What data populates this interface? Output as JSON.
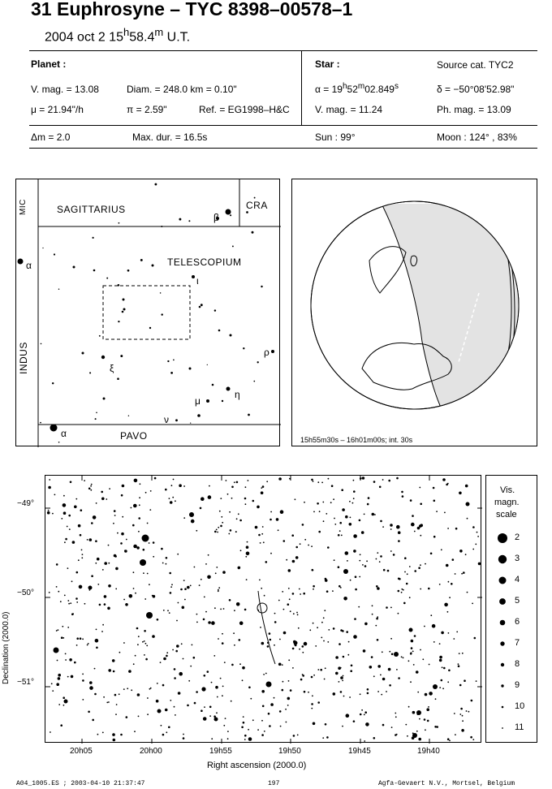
{
  "header": {
    "title": "31 Euphrosyne  –  TYC 8398–00578–1",
    "date_pre": "2004 oct  2  15",
    "date_h": "h",
    "date_mid": "58.4",
    "date_m": "m",
    "date_post": " U.T."
  },
  "planet": {
    "heading": "Planet :",
    "vmag": "V. mag. = 13.08",
    "diam": "Diam. = 248.0 km = 0.10\"",
    "mu": "μ =  21.94\"/h",
    "pi": "π =  2.59\"",
    "ref": "Ref. = EG1998–H&C"
  },
  "star": {
    "heading": "Star :",
    "source": "Source cat.  TYC2",
    "alpha_pre": "α = 19",
    "alpha_h": "h",
    "alpha_mid": "52",
    "alpha_m": "m",
    "alpha_post": "02.849",
    "alpha_s": "s",
    "delta": "δ = −50°08'52.98\"",
    "vmag": "V. mag. = 11.24",
    "phmag": "Ph. mag. = 13.09"
  },
  "summary": {
    "dm": "Δm = 2.0",
    "maxdur": "Max. dur. = 16.5s",
    "sun": "Sun :  99°",
    "moon": "Moon : 124° , 83%"
  },
  "finder": {
    "constellations": {
      "sgr": "SAGITTARIUS",
      "cra": "CRA",
      "tel": "TELESCOPIUM",
      "ind": "INDUS",
      "pav": "PAVO",
      "mic": "MIC"
    },
    "greek": {
      "beta": "β",
      "alpha_ind": "α",
      "iota": "ι",
      "rho": "ρ",
      "xi": "ξ",
      "eta": "η",
      "mu": "μ",
      "nu": "ν",
      "alpha_pav": "α"
    }
  },
  "globe": {
    "caption": "15h55m30s – 16h01m00s; int. 30s"
  },
  "chart": {
    "y_ticks": [
      "−49°",
      "−50°",
      "−51°"
    ],
    "x_ticks": [
      "20h05",
      "20h00",
      "19h55",
      "19h50",
      "19h45",
      "19h40"
    ],
    "xlabel": "Right ascension (2000.0)",
    "ylabel": "Declination (2000.0)",
    "scale_title_1": "Vis.",
    "scale_title_2": "magn.",
    "scale_title_3": "scale",
    "scale": [
      "2",
      "3",
      "4",
      "5",
      "6",
      "7",
      "8",
      "9",
      "10",
      "11"
    ]
  },
  "footer": {
    "left": "A04_1005.ES ; 2003-04-10 21:37:47",
    "center": "197",
    "right": "Agfa-Gevaert N.V., Mortsel, Belgium"
  }
}
